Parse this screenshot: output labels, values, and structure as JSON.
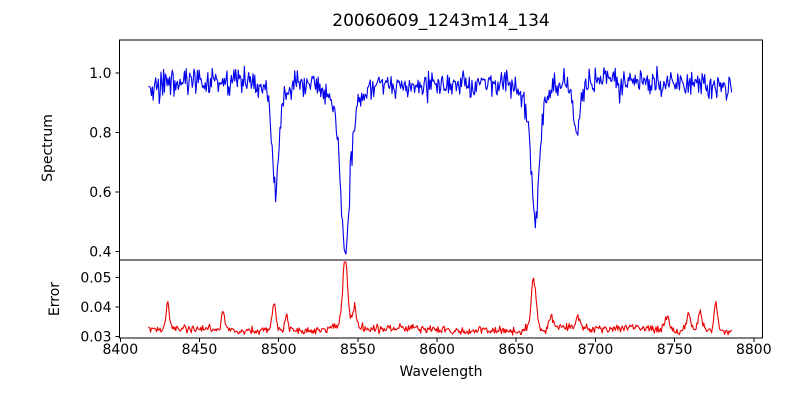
{
  "chart_data": {
    "type": "line",
    "title": "20060609_1243m14_134",
    "xlabel": "Wavelength",
    "grid": false,
    "legend": false,
    "xlim": [
      8399.5,
      8805.5
    ],
    "x_ticks": [
      8400,
      8450,
      8500,
      8550,
      8600,
      8650,
      8700,
      8750,
      8800
    ],
    "x_data_range": [
      8418,
      8786
    ],
    "frame_color": "#000000",
    "background_color": "#ffffff",
    "subplots": [
      {
        "name": "spectrum",
        "ylabel": "Spectrum",
        "line_color": "#0000ee",
        "ylim": [
          0.371,
          1.111
        ],
        "y_ticks": [
          1.0,
          0.8,
          0.6,
          0.4
        ],
        "y_tick_labels": [
          "1.0",
          "0.8",
          "0.6",
          "0.4"
        ],
        "y_data_min": 0.41,
        "y_data_max": 1.07,
        "continuum_level": 0.965,
        "noise_sigma": 0.021,
        "absorption_lines": [
          {
            "center": 8498,
            "min_value": 0.59,
            "core_depth": 0.32,
            "core_width": 1.9,
            "wing_depth": 0.06,
            "wing_width": 5.0
          },
          {
            "center": 8542,
            "min_value": 0.41,
            "core_depth": 0.43,
            "core_width": 2.6,
            "wing_depth": 0.125,
            "wing_width": 7.0
          },
          {
            "center": 8662,
            "min_value": 0.5,
            "core_depth": 0.35,
            "core_width": 2.2,
            "wing_depth": 0.12,
            "wing_width": 6.0
          },
          {
            "center": 8688,
            "min_value": 0.78,
            "core_depth": 0.17,
            "core_width": 1.8,
            "wing_depth": 0.02,
            "wing_width": 4.0
          }
        ]
      },
      {
        "name": "error",
        "ylabel": "Error",
        "line_color": "#ee0000",
        "ylim": [
          0.0295,
          0.0559
        ],
        "y_ticks": [
          0.05,
          0.04,
          0.03
        ],
        "y_tick_labels": [
          "0.05",
          "0.04",
          "0.03"
        ],
        "y_data_min": 0.0305,
        "y_data_max": 0.0545,
        "baseline_level": 0.0323,
        "noise_sigma": 0.00065,
        "peaks": [
          {
            "center": 8430,
            "height": 0.009,
            "width": 1.0
          },
          {
            "center": 8465,
            "height": 0.0072,
            "width": 1.0
          },
          {
            "center": 8497,
            "height": 0.009,
            "width": 1.2
          },
          {
            "center": 8505,
            "height": 0.005,
            "width": 1.0
          },
          {
            "center": 8542,
            "height": 0.0222,
            "width": 1.3
          },
          {
            "center": 8542,
            "height": 0.004,
            "width": 3.5
          },
          {
            "center": 8548,
            "height": 0.0068,
            "width": 1.0
          },
          {
            "center": 8661,
            "height": 0.0145,
            "width": 1.4
          },
          {
            "center": 8661,
            "height": 0.003,
            "width": 3.0
          },
          {
            "center": 8672,
            "height": 0.0046,
            "width": 1.2
          },
          {
            "center": 8689,
            "height": 0.0038,
            "width": 1.2
          },
          {
            "center": 8745,
            "height": 0.0045,
            "width": 1.5
          },
          {
            "center": 8759,
            "height": 0.0058,
            "width": 1.3
          },
          {
            "center": 8766,
            "height": 0.0066,
            "width": 1.2
          },
          {
            "center": 8776,
            "height": 0.0095,
            "width": 1.0
          }
        ]
      }
    ]
  }
}
